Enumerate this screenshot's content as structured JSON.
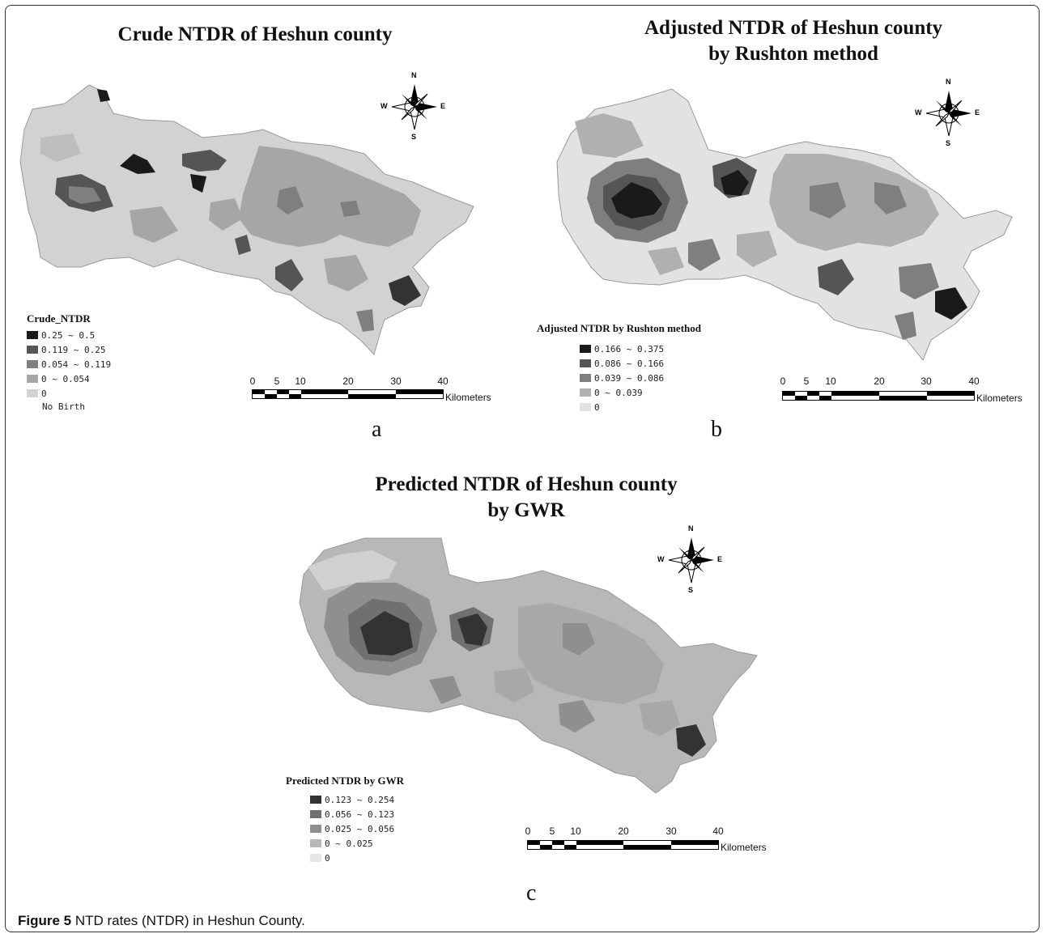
{
  "panels": [
    {
      "id": "a",
      "title_line1": "Crude NTDR of Heshun county",
      "title_line2": "",
      "legend_title": "Crude_NTDR",
      "legend": [
        {
          "label": "0.25 ~ 0.5",
          "color": "#1a1a1a"
        },
        {
          "label": "0.119 ~ 0.25",
          "color": "#555555"
        },
        {
          "label": "0.054 ~ 0.119",
          "color": "#7f7f7f"
        },
        {
          "label": "0 ~ 0.054",
          "color": "#a6a6a6"
        },
        {
          "label": "0",
          "color": "#d2d2d2"
        }
      ],
      "legend_note": "No Birth",
      "letter": "a"
    },
    {
      "id": "b",
      "title_line1": "Adjusted NTDR of Heshun county",
      "title_line2": "by Rushton method",
      "legend_title": "Adjusted NTDR by Rushton method",
      "legend": [
        {
          "label": "0.166 ~ 0.375",
          "color": "#1a1a1a"
        },
        {
          "label": "0.086 ~ 0.166",
          "color": "#555555"
        },
        {
          "label": "0.039 ~ 0.086",
          "color": "#7f7f7f"
        },
        {
          "label": "0 ~ 0.039",
          "color": "#b0b0b0"
        },
        {
          "label": "0",
          "color": "#e2e2e2"
        }
      ],
      "legend_note": "",
      "letter": "b"
    },
    {
      "id": "c",
      "title_line1": "Predicted NTDR of Heshun county",
      "title_line2": "by GWR",
      "legend_title": "Predicted NTDR by GWR",
      "legend": [
        {
          "label": "0.123 ~ 0.254",
          "color": "#333333"
        },
        {
          "label": "0.056 ~ 0.123",
          "color": "#707070"
        },
        {
          "label": "0.025 ~ 0.056",
          "color": "#8f8f8f"
        },
        {
          "label": "0 ~ 0.025",
          "color": "#b8b8b8"
        },
        {
          "label": "0",
          "color": "#e6e6e6"
        }
      ],
      "legend_note": "",
      "letter": "c"
    }
  ],
  "scale": {
    "ticks": [
      "0",
      "5",
      "10",
      "20",
      "30",
      "40"
    ],
    "unit": "Kilometers"
  },
  "compass": {
    "n": "N",
    "s": "S",
    "e": "E",
    "w": "W"
  },
  "caption": {
    "label": "Figure 5",
    "text": " NTD rates (NTDR) in Heshun County",
    "end": "."
  }
}
